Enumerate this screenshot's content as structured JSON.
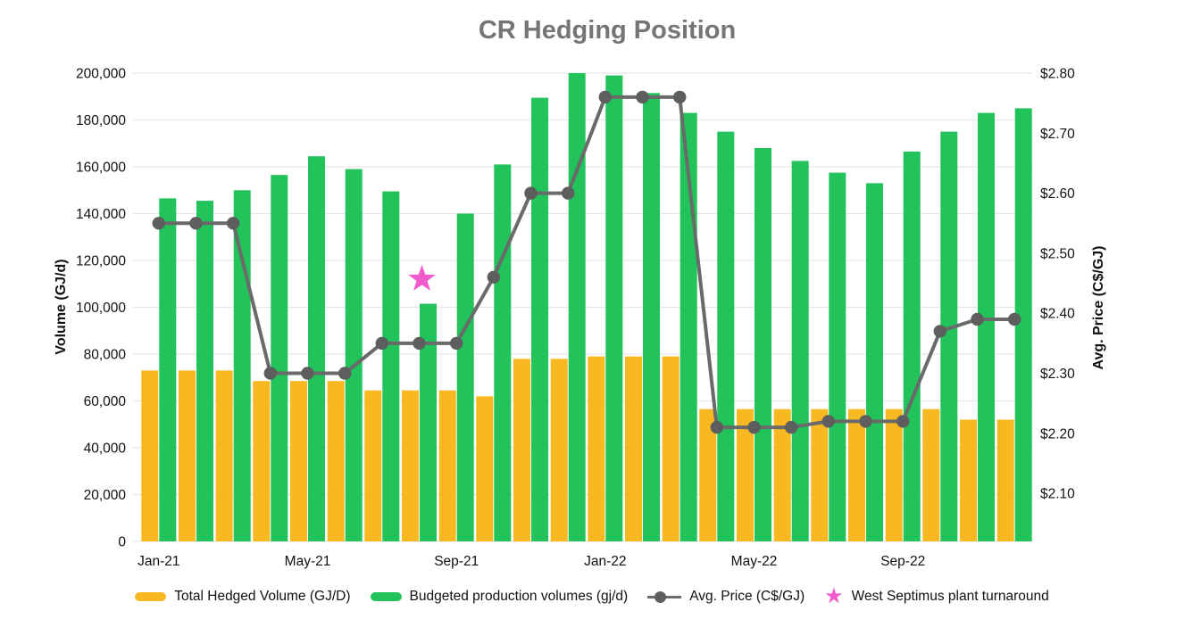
{
  "title": "CR Hedging Position",
  "left_axis": {
    "title": "Volume (GJ/d)",
    "tick_labels": [
      "0",
      "20,000",
      "40,000",
      "60,000",
      "80,000",
      "100,000",
      "120,000",
      "140,000",
      "160,000",
      "180,000",
      "200,000"
    ],
    "tick_values": [
      0,
      20000,
      40000,
      60000,
      80000,
      100000,
      120000,
      140000,
      160000,
      180000,
      200000
    ],
    "max": 200000
  },
  "right_axis": {
    "title": "Avg. Price (C$/GJ)",
    "tick_labels": [
      "$2.10",
      "$2.20",
      "$2.30",
      "$2.40",
      "$2.50",
      "$2.60",
      "$2.70",
      "$2.80"
    ],
    "tick_values": [
      2.1,
      2.2,
      2.3,
      2.4,
      2.5,
      2.6,
      2.7,
      2.8
    ]
  },
  "x_axis": {
    "visible_labels": [
      "Jan-21",
      "May-21",
      "Sep-21",
      "Jan-22",
      "May-22",
      "Sep-22"
    ],
    "label_every_n_months": 4
  },
  "legend": {
    "items": [
      {
        "label": "Total Hedged Volume (GJ/D)",
        "swatch": "bar-yellow"
      },
      {
        "label": "Budgeted production volumes (gj/d)",
        "swatch": "bar-green"
      },
      {
        "label": "Avg. Price (C$/GJ)",
        "swatch": "line-dot-gray"
      },
      {
        "label": "West Septimus plant turnaround",
        "swatch": "star-pink"
      }
    ]
  },
  "colors": {
    "hedged_bar": "#f8b822",
    "production_bar": "#21c35a",
    "price_line": "#6a6a6a",
    "price_dot": "#5e5e5e",
    "star": "#f25bce",
    "title_text": "#757575",
    "gridline": "#e6e6e6",
    "tick_text": "#111111"
  },
  "chart_data": {
    "type": "combo-bar-line",
    "categories": [
      "Jan-21",
      "Feb-21",
      "Mar-21",
      "Apr-21",
      "May-21",
      "Jun-21",
      "Jul-21",
      "Aug-21",
      "Sep-21",
      "Oct-21",
      "Nov-21",
      "Dec-21",
      "Jan-22",
      "Feb-22",
      "Mar-22",
      "Apr-22",
      "May-22",
      "Jun-22",
      "Jul-22",
      "Aug-22",
      "Sep-22",
      "Oct-22",
      "Nov-22",
      "Dec-22"
    ],
    "series": [
      {
        "name": "Total Hedged Volume (GJ/D)",
        "type": "bar",
        "axis": "left",
        "values": [
          73000,
          73000,
          73000,
          68500,
          68500,
          68500,
          64500,
          64500,
          64500,
          62000,
          78000,
          78000,
          79000,
          79000,
          79000,
          56500,
          56500,
          56500,
          56500,
          56500,
          56500,
          56500,
          52000,
          52000
        ]
      },
      {
        "name": "Budgeted production volumes (gj/d)",
        "type": "bar",
        "axis": "left",
        "values": [
          146500,
          145500,
          150000,
          156500,
          164500,
          159000,
          149500,
          101500,
          140000,
          161000,
          189500,
          200000,
          199000,
          191500,
          183000,
          175000,
          168000,
          162500,
          157500,
          153000,
          166500,
          175000,
          183000,
          185000
        ]
      },
      {
        "name": "Avg. Price (C$/GJ)",
        "type": "line",
        "axis": "right",
        "values": [
          2.55,
          2.55,
          2.55,
          2.3,
          2.3,
          2.3,
          2.35,
          2.35,
          2.35,
          2.46,
          2.6,
          2.6,
          2.76,
          2.76,
          2.76,
          2.21,
          2.21,
          2.21,
          2.22,
          2.22,
          2.22,
          2.37,
          2.39,
          2.39
        ]
      }
    ],
    "annotations": [
      {
        "type": "star-marker",
        "label": "West Septimus plant turnaround",
        "month": "Aug-21",
        "volume_axis_position": 112000
      }
    ],
    "title": "CR Hedging Position",
    "xlabel": "",
    "ylabel_left": "Volume (GJ/d)",
    "ylabel_right": "Avg. Price (C$/GJ)",
    "ylim_left": [
      0,
      200000
    ],
    "right_ticks_range": [
      2.1,
      2.8
    ],
    "grid": "horizontal",
    "legend_position": "bottom"
  }
}
